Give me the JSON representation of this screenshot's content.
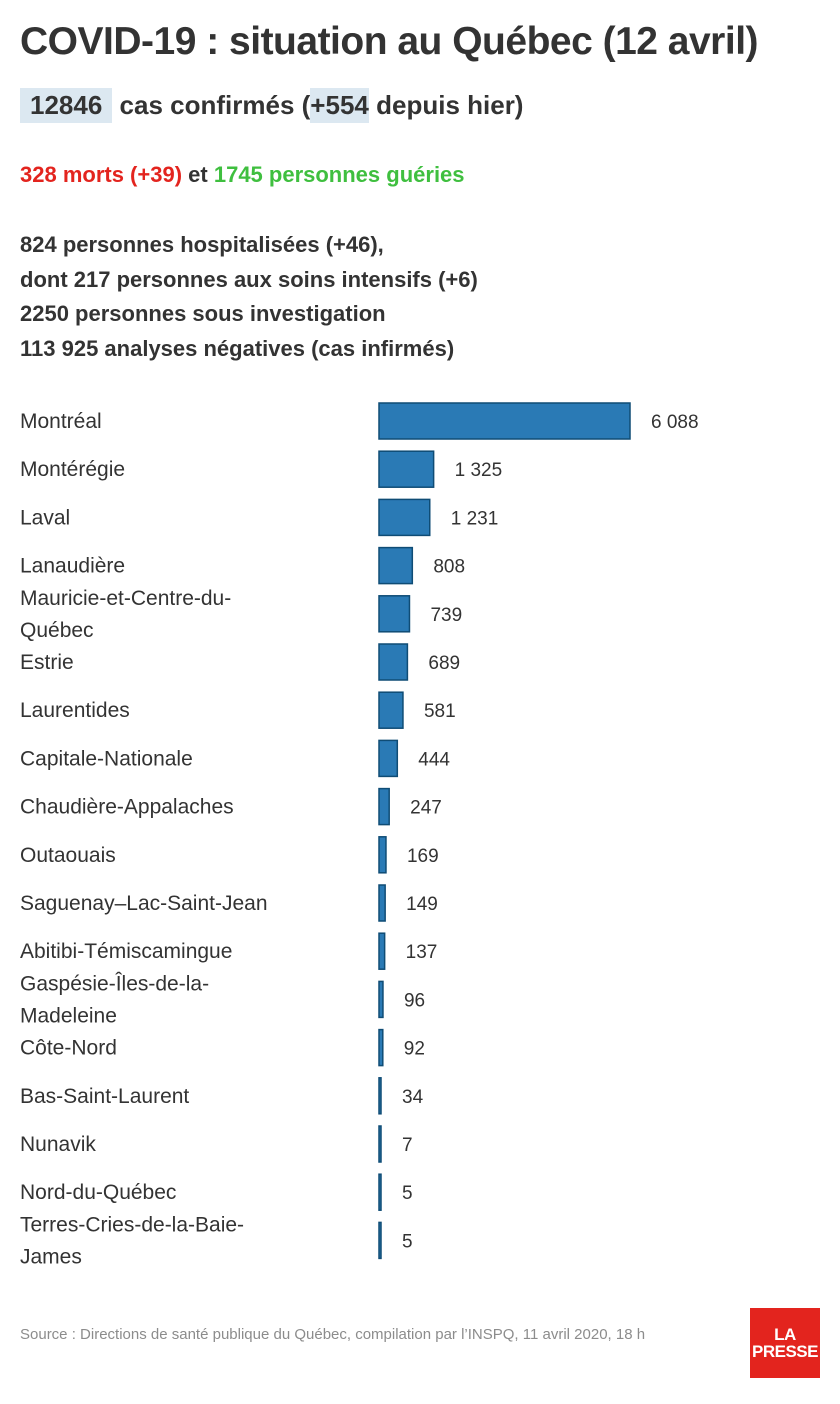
{
  "header": {
    "title": "COVID-19 : situation au Québec (12 avril)",
    "confirmed_count": "12846",
    "confirmed_text": "cas confirmés (",
    "confirmed_delta": "+554",
    "confirmed_tail": "depuis hier)"
  },
  "outcomes": {
    "deaths": "328 morts (+39)",
    "joiner": "et",
    "recovered": "1745 personnes guéries",
    "deaths_color": "#e3241e",
    "recovered_color": "#3fbf3f"
  },
  "stats": [
    "824 personnes hospitalisées (+46),",
    "dont 217 personnes aux soins intensifs (+6)",
    "2250 personnes sous investigation",
    "113 925 analyses négatives (cas infirmés)"
  ],
  "chart_data": {
    "type": "bar",
    "orientation": "horizontal",
    "categories": [
      "Montréal",
      "Montérégie",
      "Laval",
      "Lanaudière",
      "Mauricie-et-Centre-du-Québec",
      "Estrie",
      "Laurentides",
      "Capitale-Nationale",
      "Chaudière-Appalaches",
      "Outaouais",
      "Saguenay–Lac-Saint-Jean",
      "Abitibi-Témiscamingue",
      "Gaspésie-Îles-de-la-Madeleine",
      "Côte-Nord",
      "Bas-Saint-Laurent",
      "Nunavik",
      "Nord-du-Québec",
      "Terres-Cries-de-la-Baie-James"
    ],
    "values": [
      6088,
      1325,
      1231,
      808,
      739,
      689,
      581,
      444,
      247,
      169,
      149,
      137,
      96,
      92,
      34,
      7,
      5,
      5
    ],
    "value_labels": [
      "6 088",
      "1 325",
      "1 231",
      "808",
      "739",
      "689",
      "581",
      "444",
      "247",
      "169",
      "149",
      "137",
      "96",
      "92",
      "34",
      "7",
      "5",
      "5"
    ],
    "bar_color": "#2a7ab5",
    "bar_stroke": "#0f4c75",
    "title": "",
    "xlabel": "",
    "ylabel": "",
    "grid": false,
    "legend": "none"
  },
  "footer": {
    "source": "Source : Directions de santé publique du Québec, compilation par l’INSPQ, 11 avril 2020, 18 h",
    "logo_line1": "LA",
    "logo_line2": "PRESSE",
    "logo_color": "#e3241e"
  }
}
